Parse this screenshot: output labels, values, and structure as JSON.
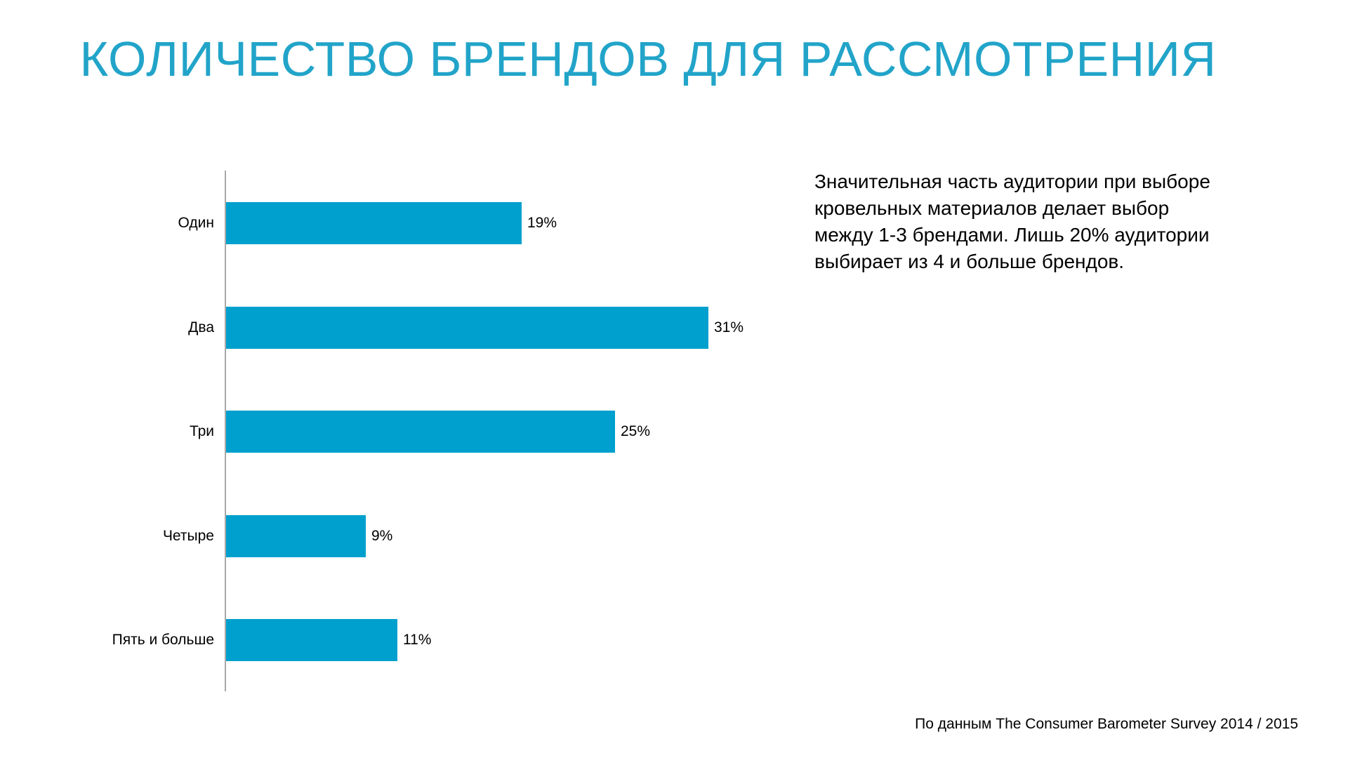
{
  "title": {
    "text": "КОЛИЧЕСТВО БРЕНДОВ ДЛЯ РАССМОТРЕНИЯ",
    "color": "#22A4C9"
  },
  "chart_data": {
    "type": "bar",
    "orientation": "horizontal",
    "categories": [
      "Один",
      "Два",
      "Три",
      "Четыре",
      "Пять и больше"
    ],
    "values": [
      19,
      31,
      25,
      9,
      11
    ],
    "value_labels": [
      "19%",
      "31%",
      "25%",
      "9%",
      "11%"
    ],
    "unit": "percent",
    "xlim": [
      0,
      33
    ],
    "grid": false,
    "legend": false,
    "bar_color": "#00A0CE",
    "axis_color": "#A8A8A8",
    "label_color": "#000000"
  },
  "annotation": {
    "text": "Значительная часть аудитории при выборе кровельных материалов делает выбор между 1-3 брендами. Лишь 20% аудитории выбирает из 4 и больше брендов."
  },
  "footer": {
    "source_text": "По данным The Consumer Barometer Survey 2014 / 2015"
  }
}
